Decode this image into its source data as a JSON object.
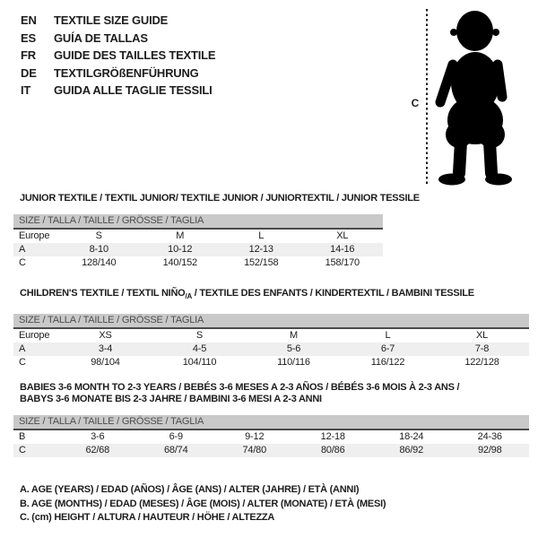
{
  "colors": {
    "background": "#ffffff",
    "ink": "#1d1d1d",
    "size_bar_bg": "#c9c9c9",
    "size_bar_text": "#4d4d4d",
    "rule": "#4a4a4a",
    "zebra_row": "#efefef"
  },
  "languages": [
    {
      "code": "EN",
      "label": "TEXTILE SIZE GUIDE"
    },
    {
      "code": "ES",
      "label": "GUÍA DE TALLAS"
    },
    {
      "code": "FR",
      "label": "GUIDE DES TAILLES TEXTILE"
    },
    {
      "code": "DE",
      "label": "TEXTILGRÖßENFÜHRUNG"
    },
    {
      "code": "IT",
      "label": "GUIDA ALLE TAGLIE TESSILI"
    }
  ],
  "figure": {
    "marker_label": "C",
    "description": "toddler-silhouette"
  },
  "tables": [
    {
      "id": "junior",
      "title_lines": [
        [
          {
            "t": "JUNIOR TEXTILE / TEXTIL JUNIOR/ TEXTILE JUNIOR / JUNIORTEXTIL / JUNIOR TESSILE"
          }
        ]
      ],
      "size_header": "SIZE / TALLA / TAILLE / GRÖSSE / TAGLIA",
      "rows": [
        {
          "label": "Europe",
          "values": [
            "S",
            "M",
            "L",
            "XL"
          ],
          "shaded": false
        },
        {
          "label": "A",
          "values": [
            "8-10",
            "10-12",
            "12-13",
            "14-16"
          ],
          "shaded": true
        },
        {
          "label": "C",
          "values": [
            "128/140",
            "140/152",
            "152/158",
            "158/170"
          ],
          "shaded": false
        }
      ]
    },
    {
      "id": "children",
      "title_lines": [
        [
          {
            "t": "CHILDREN'S TEXTILE / TEXTIL NIÑO"
          },
          {
            "t": "/A",
            "sub": true
          },
          {
            "t": " / TEXTILE DES ENFANTS / KINDERTEXTIL / BAMBINI TESSILE"
          }
        ]
      ],
      "size_header": "SIZE / TALLA / TAILLE / GRÖSSE / TAGLIA",
      "rows": [
        {
          "label": "Europe",
          "values": [
            "XS",
            "S",
            "M",
            "L",
            "XL"
          ],
          "shaded": false
        },
        {
          "label": "A",
          "values": [
            "3-4",
            "4-5",
            "5-6",
            "6-7",
            "7-8"
          ],
          "shaded": true
        },
        {
          "label": "C",
          "values": [
            "98/104",
            "104/110",
            "110/116",
            "116/122",
            "122/128"
          ],
          "shaded": false
        }
      ]
    },
    {
      "id": "babies",
      "title_lines": [
        [
          {
            "t": "BABIES 3-6 MONTH TO 2-3 YEARS / BEBÉS 3-6 MESES A 2-3 AÑOS / BÉBÉS 3-6 MOIS À 2-3 ANS /"
          }
        ],
        [
          {
            "t": "BABYS 3-6 MONATE BIS 2-3 JAHRE / BAMBINI 3-6 MESI A 2-3 ANNI"
          }
        ]
      ],
      "size_header": "SIZE / TALLA / TAILLE / GRÖSSE / TAGLIA",
      "rows": [
        {
          "label": "B",
          "values": [
            "3-6",
            "6-9",
            "9-12",
            "12-18",
            "18-24",
            "24-36"
          ],
          "shaded": false
        },
        {
          "label": "C",
          "values": [
            "62/68",
            "68/74",
            "74/80",
            "80/86",
            "86/92",
            "92/98"
          ],
          "shaded": true
        }
      ]
    }
  ],
  "legend": {
    "line_a": "A. AGE (YEARS) / EDAD (AÑOS) / ÂGE (ANS) / ALTER (JAHRE) / ETÀ (ANNI)",
    "line_b": "B. AGE (MONTHS) / EDAD (MESES) / ÂGE (MOIS) / ALTER (MONATE) / ETÀ (MESI)",
    "line_c": "C. (cm) HEIGHT / ALTURA / HAUTEUR / HÖHE / ALTEZZA"
  }
}
